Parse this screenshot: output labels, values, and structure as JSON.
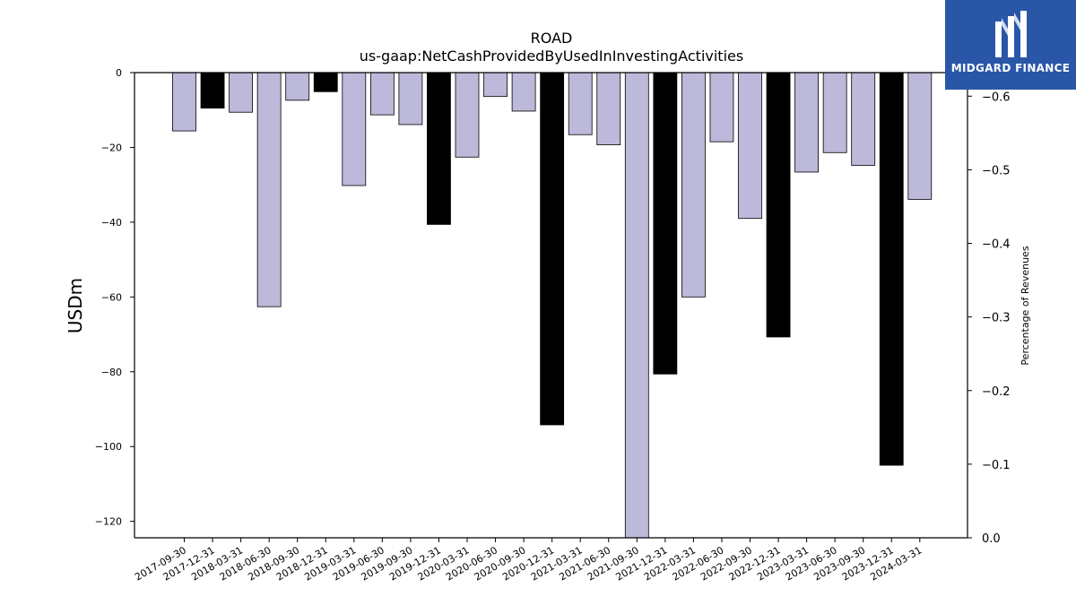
{
  "chart_data": {
    "type": "bar",
    "title": "ROAD",
    "subtitle": "us-gaap:NetCashProvidedByUsedInInvestingActivities",
    "ylabel": "USDm",
    "y2label": "Percentage of Revenues",
    "ylim": [
      -124.4,
      0
    ],
    "y2lim": [
      0.0,
      -0.632
    ],
    "yticks": [
      0,
      -20,
      -40,
      -60,
      -80,
      -100,
      -120
    ],
    "y2ticks": [
      0.0,
      -0.1,
      -0.2,
      -0.3,
      -0.4,
      -0.5,
      -0.6
    ],
    "y2ticklabels": [
      "0.0",
      "−0.1",
      "−0.2",
      "−0.3",
      "−0.4",
      "−0.5",
      "−0.6"
    ],
    "yticklabels": [
      "0",
      "−20",
      "−40",
      "−60",
      "−80",
      "−100",
      "−120"
    ],
    "categories": [
      "2017-09-30",
      "2017-12-31",
      "2018-03-31",
      "2018-06-30",
      "2018-09-30",
      "2018-12-31",
      "2019-03-31",
      "2019-06-30",
      "2019-09-30",
      "2019-12-31",
      "2020-03-31",
      "2020-06-30",
      "2020-09-30",
      "2020-12-31",
      "2021-03-31",
      "2021-06-30",
      "2021-09-30",
      "2021-12-31",
      "2022-03-31",
      "2022-06-30",
      "2022-09-30",
      "2022-12-31",
      "2023-03-31",
      "2023-06-30",
      "2023-09-30",
      "2023-12-31",
      "2024-03-31"
    ],
    "bars": [
      {
        "value": -15.6,
        "kind": "quarter"
      },
      {
        "value": -9.5,
        "kind": "annual"
      },
      {
        "value": -10.6,
        "kind": "quarter"
      },
      {
        "value": -62.6,
        "kind": "quarter"
      },
      {
        "value": -7.4,
        "kind": "quarter"
      },
      {
        "value": -5.1,
        "kind": "annual"
      },
      {
        "value": -30.2,
        "kind": "quarter"
      },
      {
        "value": -11.3,
        "kind": "quarter"
      },
      {
        "value": -13.9,
        "kind": "quarter"
      },
      {
        "value": -40.6,
        "kind": "annual"
      },
      {
        "value": -22.6,
        "kind": "quarter"
      },
      {
        "value": -6.4,
        "kind": "quarter"
      },
      {
        "value": -10.3,
        "kind": "quarter"
      },
      {
        "value": -94.2,
        "kind": "annual"
      },
      {
        "value": -16.6,
        "kind": "quarter"
      },
      {
        "value": -19.3,
        "kind": "quarter"
      },
      {
        "value": -124.4,
        "kind": "quarter"
      },
      {
        "value": -80.6,
        "kind": "annual"
      },
      {
        "value": -60.0,
        "kind": "quarter"
      },
      {
        "value": -18.5,
        "kind": "quarter"
      },
      {
        "value": -39.0,
        "kind": "quarter"
      },
      {
        "value": -70.7,
        "kind": "annual"
      },
      {
        "value": -26.6,
        "kind": "quarter"
      },
      {
        "value": -21.4,
        "kind": "quarter"
      },
      {
        "value": -24.8,
        "kind": "quarter"
      },
      {
        "value": -105.0,
        "kind": "annual"
      },
      {
        "value": -33.9,
        "kind": "quarter"
      }
    ],
    "colors": {
      "quarter": "#bdb9da",
      "annual": "#000000",
      "edge": "#000000"
    },
    "grid": false,
    "legend": "none"
  },
  "logo": {
    "text": "MIDGARD FINANCE",
    "icon": "midgard-finance-logo-icon",
    "background": "#2a56a8"
  }
}
